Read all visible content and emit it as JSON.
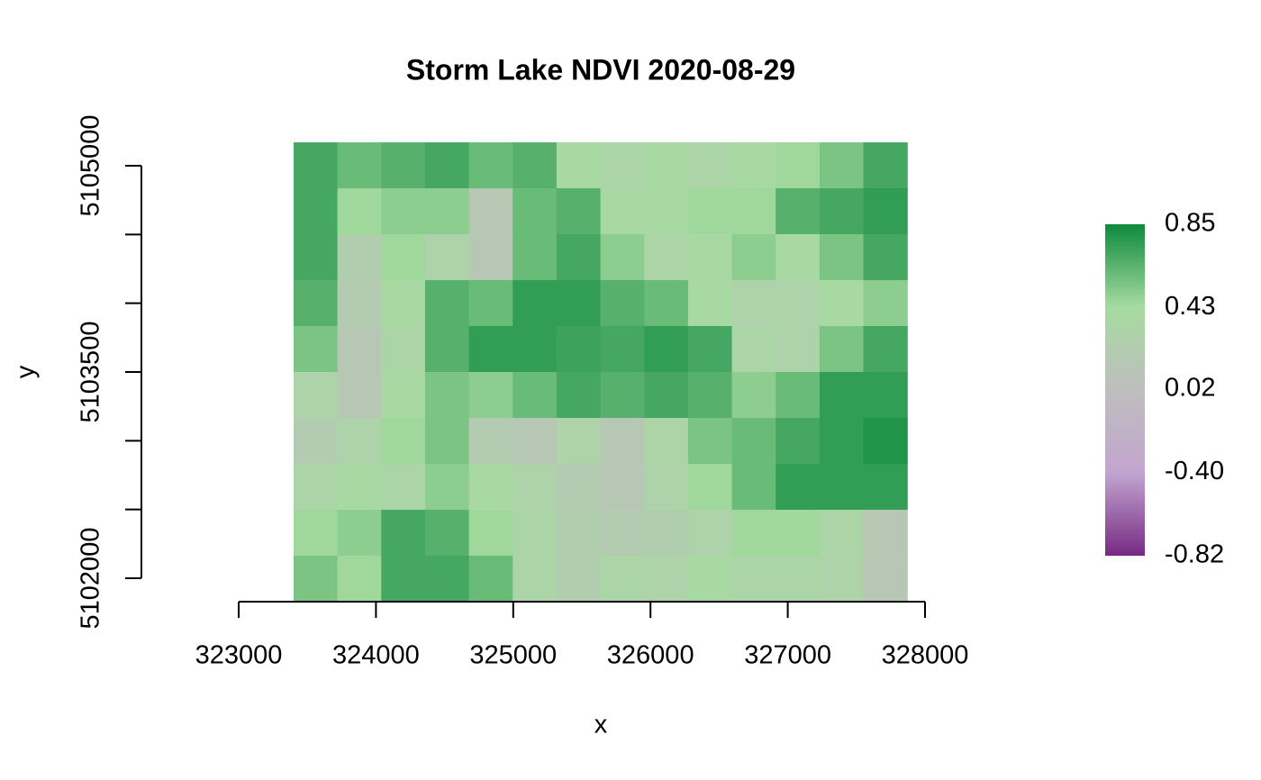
{
  "chart_data": {
    "type": "raster",
    "title": "Storm Lake NDVI 2020-08-29",
    "xlabel": "x",
    "ylabel": "y",
    "xlim": [
      323000,
      328000
    ],
    "xticks": [
      323000,
      324000,
      325000,
      326000,
      327000,
      328000
    ],
    "ylim": [
      5102000,
      5105000
    ],
    "yticks": [
      5102000,
      {
        "value": 5102500,
        "label": null
      },
      {
        "value": 5103000,
        "label": null
      },
      5103500,
      {
        "value": 5104000,
        "label": null
      },
      {
        "value": 5104500,
        "label": null
      },
      5105000
    ],
    "extent": {
      "x": [
        323400,
        327870
      ],
      "y": [
        5101830,
        5105170
      ]
    },
    "values": [
      [
        0.7,
        0.6,
        0.65,
        0.7,
        0.6,
        0.65,
        0.4,
        0.35,
        0.4,
        0.35,
        0.4,
        0.45,
        0.55,
        0.7
      ],
      [
        0.7,
        0.45,
        0.5,
        0.5,
        0.15,
        0.6,
        0.65,
        0.4,
        0.4,
        0.45,
        0.45,
        0.65,
        0.7,
        0.75
      ],
      [
        0.7,
        0.25,
        0.45,
        0.3,
        0.15,
        0.6,
        0.7,
        0.5,
        0.35,
        0.4,
        0.5,
        0.4,
        0.55,
        0.7
      ],
      [
        0.65,
        0.2,
        0.4,
        0.65,
        0.6,
        0.75,
        0.75,
        0.65,
        0.6,
        0.4,
        0.3,
        0.3,
        0.4,
        0.5
      ],
      [
        0.55,
        0.15,
        0.35,
        0.65,
        0.75,
        0.75,
        0.72,
        0.7,
        0.75,
        0.7,
        0.35,
        0.3,
        0.55,
        0.7
      ],
      [
        0.3,
        0.15,
        0.4,
        0.55,
        0.5,
        0.6,
        0.7,
        0.65,
        0.7,
        0.65,
        0.5,
        0.6,
        0.75,
        0.75
      ],
      [
        0.2,
        0.3,
        0.45,
        0.55,
        0.2,
        0.15,
        0.3,
        0.15,
        0.35,
        0.55,
        0.6,
        0.7,
        0.75,
        0.8
      ],
      [
        0.35,
        0.4,
        0.35,
        0.5,
        0.4,
        0.3,
        0.2,
        0.15,
        0.3,
        0.45,
        0.6,
        0.75,
        0.75,
        0.75
      ],
      [
        0.45,
        0.5,
        0.7,
        0.65,
        0.45,
        0.35,
        0.25,
        0.2,
        0.25,
        0.3,
        0.45,
        0.45,
        0.35,
        0.15
      ],
      [
        0.55,
        0.45,
        0.7,
        0.7,
        0.6,
        0.35,
        0.25,
        0.35,
        0.3,
        0.4,
        0.35,
        0.35,
        0.3,
        0.15
      ]
    ],
    "colorbar": {
      "lim": [
        -0.82,
        0.85
      ],
      "ticks": [
        0.85,
        0.43,
        0.02,
        {
          "value": -0.4,
          "label": "-0.40"
        },
        -0.82
      ],
      "colors": [
        "#762a83",
        "#c2a5cf",
        "#bebebe",
        "#a6dba0",
        "#0e8a3d"
      ]
    }
  }
}
